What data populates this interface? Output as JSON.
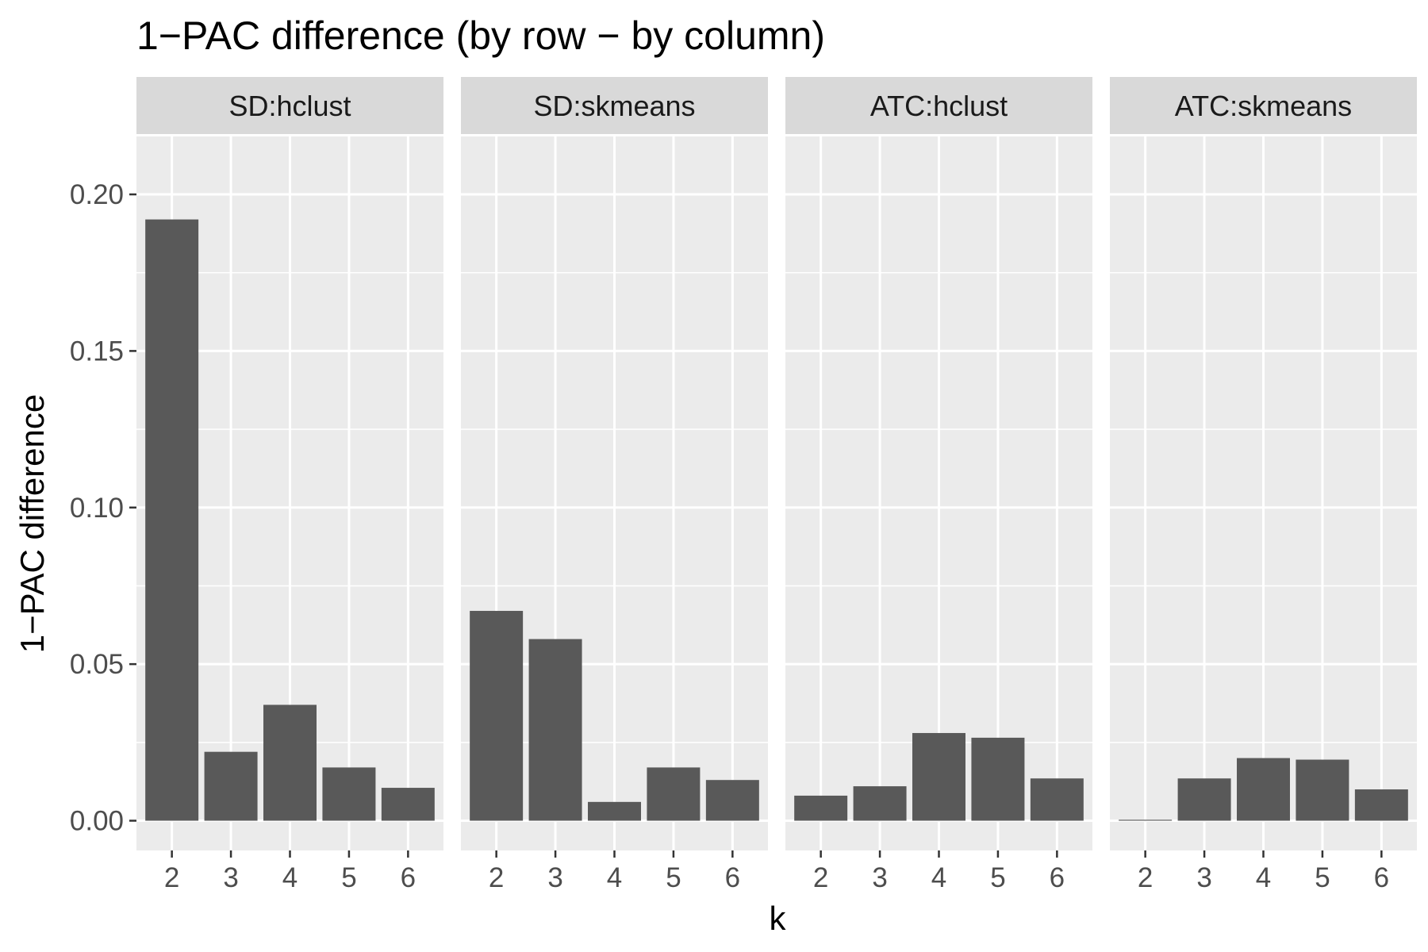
{
  "chart_data": {
    "type": "bar",
    "title": "1−PAC difference (by row − by column)",
    "xlabel": "k",
    "ylabel": "1−PAC difference",
    "categories": [
      "2",
      "3",
      "4",
      "5",
      "6"
    ],
    "ylim": [
      -0.0095,
      0.2185
    ],
    "yticks": [
      0.0,
      0.05,
      0.1,
      0.15,
      0.2
    ],
    "ytick_labels": [
      "0.00",
      "0.05",
      "0.10",
      "0.15",
      "0.20"
    ],
    "grid": true,
    "bar_color": "#595959",
    "panel_background": "#ebebeb",
    "strip_background": "#d9d9d9",
    "grid_color": "#ffffff",
    "panels": [
      {
        "name": "SD:hclust",
        "values": [
          0.192,
          0.022,
          0.037,
          0.017,
          0.0105
        ]
      },
      {
        "name": "SD:skmeans",
        "values": [
          0.067,
          0.058,
          0.006,
          0.017,
          0.013
        ]
      },
      {
        "name": "ATC:hclust",
        "values": [
          0.008,
          0.011,
          0.028,
          0.0265,
          0.0135
        ]
      },
      {
        "name": "ATC:skmeans",
        "values": [
          0.0003,
          0.0135,
          0.02,
          0.0195,
          0.01
        ]
      }
    ]
  }
}
